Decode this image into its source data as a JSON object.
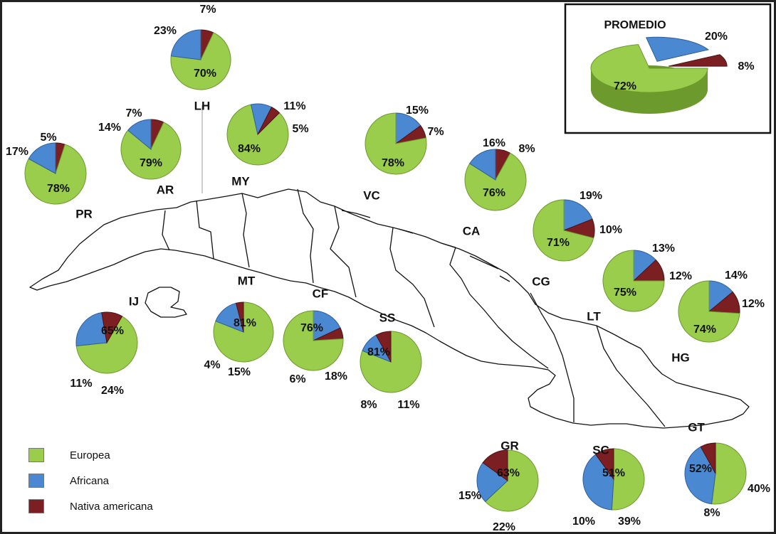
{
  "colors": {
    "europea": "#9acd4b",
    "africana": "#4a89d2",
    "nativa": "#7c1f22",
    "europea_dark": "#6d9a2c",
    "africana_dark": "#2f5f9a",
    "nativa_dark": "#4e1214"
  },
  "legend": {
    "items": [
      {
        "key": "europea",
        "label": "Europea"
      },
      {
        "key": "africana",
        "label": "Africana"
      },
      {
        "key": "nativa",
        "label": "Nativa americana"
      }
    ]
  },
  "chart_data": [
    {
      "type": "pie",
      "title": "PROMEDIO",
      "labels": [
        "Europea",
        "Africana",
        "Nativa americana"
      ],
      "values": [
        72,
        20,
        8
      ],
      "value_labels": [
        "72%",
        "20%",
        "8%"
      ]
    },
    {
      "type": "pie",
      "region": "LH",
      "labels": [
        "Europea",
        "Africana",
        "Nativa americana"
      ],
      "values": [
        70,
        23,
        7
      ],
      "value_labels": [
        "70%",
        "23%",
        "7%"
      ]
    },
    {
      "type": "pie",
      "region": "PR",
      "labels": [
        "Europea",
        "Africana",
        "Nativa americana"
      ],
      "values": [
        78,
        17,
        5
      ],
      "value_labels": [
        "78%",
        "17%",
        "5%"
      ]
    },
    {
      "type": "pie",
      "region": "AR",
      "labels": [
        "Europea",
        "Africana",
        "Nativa americana"
      ],
      "values": [
        79,
        14,
        7
      ],
      "value_labels": [
        "79%",
        "14%",
        "7%"
      ]
    },
    {
      "type": "pie",
      "region": "MY",
      "labels": [
        "Europea",
        "Africana",
        "Nativa americana"
      ],
      "values": [
        84,
        11,
        5
      ],
      "value_labels": [
        "84%",
        "11%",
        "5%"
      ]
    },
    {
      "type": "pie",
      "region": "VC",
      "labels": [
        "Europea",
        "Africana",
        "Nativa americana"
      ],
      "values": [
        78,
        15,
        7
      ],
      "value_labels": [
        "78%",
        "15%",
        "7%"
      ]
    },
    {
      "type": "pie",
      "region": "CA",
      "labels": [
        "Europea",
        "Africana",
        "Nativa americana"
      ],
      "values": [
        76,
        16,
        8
      ],
      "value_labels": [
        "76%",
        "16%",
        "8%"
      ]
    },
    {
      "type": "pie",
      "region": "CG",
      "labels": [
        "Europea",
        "Africana",
        "Nativa americana"
      ],
      "values": [
        71,
        19,
        10
      ],
      "value_labels": [
        "71%",
        "19%",
        "10%"
      ]
    },
    {
      "type": "pie",
      "region": "LT",
      "labels": [
        "Europea",
        "Africana",
        "Nativa americana"
      ],
      "values": [
        75,
        13,
        12
      ],
      "value_labels": [
        "75%",
        "13%",
        "12%"
      ]
    },
    {
      "type": "pie",
      "region": "HG",
      "labels": [
        "Europea",
        "Africana",
        "Nativa americana"
      ],
      "values": [
        74,
        14,
        12
      ],
      "value_labels": [
        "74%",
        "14%",
        "12%"
      ]
    },
    {
      "type": "pie",
      "region": "IJ",
      "labels": [
        "Europea",
        "Africana",
        "Nativa americana"
      ],
      "values": [
        65,
        24,
        11
      ],
      "value_labels": [
        "65%",
        "24%",
        "11%"
      ]
    },
    {
      "type": "pie",
      "region": "MT",
      "labels": [
        "Europea",
        "Africana",
        "Nativa americana"
      ],
      "values": [
        81,
        15,
        4
      ],
      "value_labels": [
        "81%",
        "15%",
        "4%"
      ]
    },
    {
      "type": "pie",
      "region": "CF",
      "labels": [
        "Europea",
        "Africana",
        "Nativa americana"
      ],
      "values": [
        76,
        18,
        6
      ],
      "value_labels": [
        "76%",
        "18%",
        "6%"
      ]
    },
    {
      "type": "pie",
      "region": "SS",
      "labels": [
        "Europea",
        "Africana",
        "Nativa americana"
      ],
      "values": [
        81,
        11,
        8
      ],
      "value_labels": [
        "81%",
        "11%",
        "8%"
      ]
    },
    {
      "type": "pie",
      "region": "GR",
      "labels": [
        "Europea",
        "Africana",
        "Nativa americana"
      ],
      "values": [
        63,
        22,
        15
      ],
      "value_labels": [
        "63%",
        "22%",
        "15%"
      ]
    },
    {
      "type": "pie",
      "region": "SC",
      "labels": [
        "Europea",
        "Africana",
        "Nativa americana"
      ],
      "values": [
        51,
        39,
        10
      ],
      "value_labels": [
        "51%",
        "39%",
        "10%"
      ]
    },
    {
      "type": "pie",
      "region": "GT",
      "labels": [
        "Europea",
        "Africana",
        "Nativa americana"
      ],
      "values": [
        52,
        40,
        8
      ],
      "value_labels": [
        "52%",
        "40%",
        "8%"
      ]
    }
  ]
}
